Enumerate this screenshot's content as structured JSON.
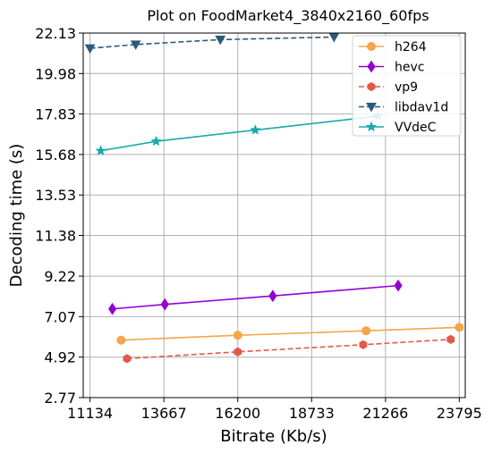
{
  "chart_data": {
    "type": "line",
    "title": "Plot on FoodMarket4_3840x2160_60fps",
    "xlabel": "Bitrate (Kb/s)",
    "ylabel": "Decoding time (s)",
    "xlim": [
      10900,
      24000
    ],
    "ylim": [
      2.77,
      22.13
    ],
    "x_ticks": [
      11134,
      13667,
      16200,
      18733,
      21266,
      23795
    ],
    "y_ticks": [
      2.77,
      4.92,
      7.07,
      9.22,
      11.38,
      13.53,
      15.68,
      17.83,
      19.98,
      22.13
    ],
    "grid": true,
    "legend_position": "top-right",
    "series": [
      {
        "name": "h264",
        "color": "#f5a54a",
        "marker": "circle",
        "dash": "solid",
        "x": [
          12200,
          16200,
          20600,
          23795
        ],
        "y": [
          5.82,
          6.08,
          6.32,
          6.5
        ]
      },
      {
        "name": "hevc",
        "color": "#9400d3",
        "marker": "diamond",
        "dash": "solid",
        "x": [
          11900,
          13700,
          17400,
          21700
        ],
        "y": [
          7.48,
          7.72,
          8.17,
          8.72
        ]
      },
      {
        "name": "vp9",
        "color": "#e05a47",
        "marker": "hexagon",
        "dash": "dashed",
        "x": [
          12400,
          16200,
          20500,
          23500
        ],
        "y": [
          4.84,
          5.2,
          5.58,
          5.86
        ]
      },
      {
        "name": "libdav1d",
        "color": "#2b5a7a",
        "marker": "triangle-down",
        "dash": "dashed",
        "x": [
          11134,
          12700,
          15600,
          19500
        ],
        "y": [
          21.32,
          21.52,
          21.78,
          21.92
        ]
      },
      {
        "name": "VVdeC",
        "color": "#19aaaa",
        "marker": "star",
        "dash": "solid",
        "x": [
          11500,
          13400,
          16800,
          21000
        ],
        "y": [
          15.88,
          16.38,
          16.98,
          17.72
        ]
      }
    ]
  }
}
